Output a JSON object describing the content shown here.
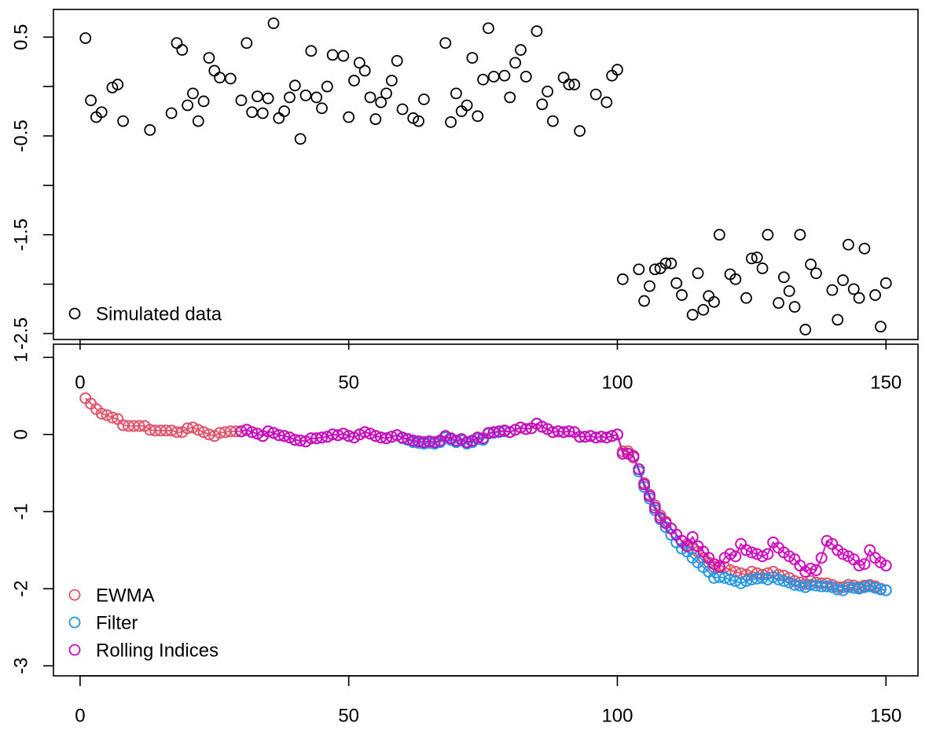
{
  "chart_data": [
    {
      "type": "scatter",
      "xlim": [
        -4.96,
        155.96
      ],
      "ylim": [
        -2.56,
        0.78
      ],
      "xticks": [
        0,
        50,
        100,
        150
      ],
      "yticks": [
        0.5,
        {
          "value": 0,
          "label": null
        },
        -0.5,
        {
          "value": -1,
          "label": null
        },
        -1.5,
        {
          "value": -2,
          "label": null
        },
        -2.5
      ],
      "legend": "bottomleft",
      "series": [
        {
          "name": "Simulated data",
          "color": "#000000",
          "x": [
            1,
            2,
            3,
            4,
            6,
            7,
            8,
            13,
            17,
            18,
            19,
            20,
            21,
            22,
            23,
            24,
            25,
            26,
            28,
            30,
            31,
            32,
            33,
            34,
            35,
            36,
            37,
            38,
            39,
            40,
            41,
            42,
            43,
            44,
            45,
            46,
            47,
            49,
            50,
            51,
            52,
            53,
            54,
            55,
            56,
            57,
            58,
            59,
            60,
            62,
            63,
            64,
            68,
            69,
            70,
            71,
            72,
            73,
            74,
            75,
            76,
            77,
            79,
            80,
            81,
            82,
            83,
            85,
            86,
            87,
            88,
            90,
            91,
            92,
            93,
            96,
            98,
            99,
            100,
            101,
            104,
            105,
            106,
            107,
            108,
            109,
            110,
            111,
            112,
            114,
            115,
            116,
            117,
            118,
            119,
            121,
            122,
            124,
            125,
            126,
            127,
            128,
            130,
            131,
            132,
            133,
            134,
            135,
            136,
            137,
            140,
            141,
            142,
            143,
            144,
            145,
            146,
            148,
            149,
            150
          ],
          "values": [
            0.49,
            -0.14,
            -0.31,
            -0.26,
            -0.01,
            0.02,
            -0.35,
            -0.44,
            -0.27,
            0.44,
            0.37,
            -0.19,
            -0.07,
            -0.35,
            -0.15,
            0.29,
            0.16,
            0.09,
            0.08,
            -0.14,
            0.44,
            -0.26,
            -0.1,
            -0.27,
            -0.12,
            0.64,
            -0.32,
            -0.25,
            -0.11,
            0.01,
            -0.53,
            -0.09,
            0.36,
            -0.11,
            -0.22,
            0,
            0.32,
            0.31,
            -0.31,
            0.06,
            0.24,
            0.16,
            -0.11,
            -0.33,
            -0.16,
            -0.07,
            0.06,
            0.26,
            -0.23,
            -0.32,
            -0.35,
            -0.13,
            0.44,
            -0.36,
            -0.07,
            -0.25,
            -0.19,
            0.29,
            -0.3,
            0.07,
            0.59,
            0.1,
            0.11,
            -0.11,
            0.24,
            0.37,
            0.1,
            0.56,
            -0.18,
            -0.05,
            -0.35,
            0.09,
            0.02,
            0.02,
            -0.45,
            -0.08,
            -0.16,
            0.11,
            0.17,
            -1.95,
            -1.85,
            -2.17,
            -2.02,
            -1.85,
            -1.84,
            -1.79,
            -1.79,
            -1.99,
            -2.11,
            -2.31,
            -1.89,
            -2.26,
            -2.12,
            -2.18,
            -1.5,
            -1.9,
            -1.95,
            -2.14,
            -1.74,
            -1.73,
            -1.84,
            -1.5,
            -2.19,
            -1.93,
            -2.07,
            -2.23,
            -1.5,
            -2.46,
            -1.8,
            -1.89,
            -2.06,
            -2.36,
            -1.96,
            -1.6,
            -2.05,
            -2.14,
            -1.64,
            -2.11,
            -2.43,
            -1.99
          ]
        }
      ]
    },
    {
      "type": "line",
      "xlim": [
        -4.96,
        155.96
      ],
      "ylim": [
        -3.13,
        1.17
      ],
      "xticks": [
        0,
        50,
        100,
        150
      ],
      "yticks": [
        1,
        0,
        -1,
        -2,
        -3
      ],
      "legend": "bottomleft",
      "x": [
        1,
        2,
        3,
        4,
        5,
        6,
        7,
        8,
        9,
        10,
        11,
        12,
        13,
        14,
        15,
        16,
        17,
        18,
        19,
        20,
        21,
        22,
        23,
        24,
        25,
        26,
        27,
        28,
        29,
        30,
        31,
        32,
        33,
        34,
        35,
        36,
        37,
        38,
        39,
        40,
        41,
        42,
        43,
        44,
        45,
        46,
        47,
        48,
        49,
        50,
        51,
        52,
        53,
        54,
        55,
        56,
        57,
        58,
        59,
        60,
        61,
        62,
        63,
        64,
        65,
        66,
        67,
        68,
        69,
        70,
        71,
        72,
        73,
        74,
        75,
        76,
        77,
        78,
        79,
        80,
        81,
        82,
        83,
        84,
        85,
        86,
        87,
        88,
        89,
        90,
        91,
        92,
        93,
        94,
        95,
        96,
        97,
        98,
        99,
        100,
        101,
        102,
        103,
        104,
        105,
        106,
        107,
        108,
        109,
        110,
        111,
        112,
        113,
        114,
        115,
        116,
        117,
        118,
        119,
        120,
        121,
        122,
        123,
        124,
        125,
        126,
        127,
        128,
        129,
        130,
        131,
        132,
        133,
        134,
        135,
        136,
        137,
        138,
        139,
        140,
        141,
        142,
        143,
        144,
        145,
        146,
        147,
        148,
        149,
        150
      ],
      "series": [
        {
          "name": "EWMA",
          "color": "#df536b",
          "values": [
            0.47,
            0.4,
            0.33,
            0.27,
            0.25,
            0.22,
            0.2,
            0.12,
            0.11,
            0.11,
            0.11,
            0.11,
            0.06,
            0.05,
            0.05,
            0.05,
            0.05,
            0.03,
            0.03,
            0.08,
            0.09,
            0.06,
            0.03,
            0,
            -0.02,
            0.02,
            0.03,
            0.04,
            0.04,
            0.04,
            0.06,
            0.03,
            0.01,
            -0.02,
            0.04,
            0.02,
            -0.01,
            -0.02,
            -0.04,
            -0.07,
            -0.08,
            -0.09,
            -0.05,
            -0.05,
            -0.04,
            -0.03,
            0,
            -0.01,
            0.01,
            -0.02,
            -0.04,
            0,
            0.03,
            0.01,
            -0.02,
            -0.04,
            -0.05,
            -0.03,
            -0.01,
            -0.04,
            -0.06,
            -0.08,
            -0.09,
            -0.1,
            -0.09,
            -0.1,
            -0.08,
            -0.02,
            -0.05,
            -0.08,
            -0.06,
            -0.1,
            -0.08,
            -0.04,
            -0.05,
            0.02,
            0.03,
            0.04,
            0.05,
            0.03,
            0.06,
            0.09,
            0.07,
            0.08,
            0.14,
            0.1,
            0.07,
            0.03,
            0.04,
            0.03,
            0.04,
            0.03,
            -0.03,
            -0.03,
            -0.02,
            -0.04,
            -0.03,
            -0.04,
            -0.02,
            0,
            -0.22,
            -0.22,
            -0.3,
            -0.45,
            -0.63,
            -0.78,
            -0.92,
            -1.05,
            -1.13,
            -1.22,
            -1.3,
            -1.38,
            -1.42,
            -1.48,
            -1.52,
            -1.6,
            -1.66,
            -1.72,
            -1.7,
            -1.72,
            -1.76,
            -1.78,
            -1.8,
            -1.82,
            -1.78,
            -1.8,
            -1.82,
            -1.8,
            -1.78,
            -1.82,
            -1.83,
            -1.86,
            -1.9,
            -1.92,
            -1.94,
            -1.9,
            -1.92,
            -1.93,
            -1.93,
            -1.95,
            -1.98,
            -1.98,
            -1.95,
            -1.96,
            -1.98,
            -1.96,
            -1.95,
            -1.97,
            -2,
            -2.02
          ]
        },
        {
          "name": "Filter",
          "color": "#2297e6",
          "values": [
            null,
            null,
            null,
            null,
            null,
            null,
            null,
            null,
            null,
            null,
            null,
            null,
            null,
            null,
            null,
            null,
            null,
            null,
            null,
            null,
            null,
            null,
            null,
            null,
            null,
            null,
            null,
            null,
            null,
            0.04,
            0.06,
            0.03,
            0.01,
            -0.02,
            0.04,
            0.02,
            -0.01,
            -0.02,
            -0.04,
            -0.07,
            -0.08,
            -0.09,
            -0.05,
            -0.05,
            -0.04,
            -0.03,
            0,
            -0.01,
            0.01,
            -0.02,
            -0.04,
            0,
            0.03,
            0.01,
            -0.02,
            -0.04,
            -0.05,
            -0.03,
            -0.01,
            -0.05,
            -0.07,
            -0.1,
            -0.11,
            -0.12,
            -0.11,
            -0.12,
            -0.1,
            -0.04,
            -0.07,
            -0.1,
            -0.08,
            -0.12,
            -0.1,
            -0.06,
            -0.07,
            0.01,
            0.02,
            0.03,
            0.04,
            0.03,
            0.06,
            0.09,
            0.07,
            0.08,
            0.14,
            0.1,
            0.07,
            0.03,
            0.04,
            0.03,
            0.04,
            0.03,
            -0.03,
            -0.03,
            -0.02,
            -0.04,
            -0.03,
            -0.04,
            -0.02,
            0,
            -0.25,
            -0.25,
            -0.28,
            -0.48,
            -0.68,
            -0.83,
            -0.98,
            -1.1,
            -1.2,
            -1.3,
            -1.4,
            -1.48,
            -1.52,
            -1.6,
            -1.66,
            -1.72,
            -1.78,
            -1.86,
            -1.85,
            -1.86,
            -1.88,
            -1.9,
            -1.93,
            -1.9,
            -1.88,
            -1.87,
            -1.86,
            -1.88,
            -1.85,
            -1.88,
            -1.9,
            -1.92,
            -1.95,
            -1.96,
            -1.98,
            -1.95,
            -1.96,
            -1.97,
            -1.97,
            -1.98,
            -2.01,
            -2.02,
            -1.98,
            -1.99,
            -2,
            -1.98,
            -1.97,
            -1.99,
            -2.01,
            -2.02
          ]
        },
        {
          "name": "Rolling Indices",
          "color": "#cd0bbc",
          "values": [
            null,
            null,
            null,
            null,
            null,
            null,
            null,
            null,
            null,
            null,
            null,
            null,
            null,
            null,
            null,
            null,
            null,
            null,
            null,
            null,
            null,
            null,
            null,
            null,
            null,
            null,
            null,
            null,
            null,
            0.04,
            0.06,
            0.03,
            0.01,
            -0.02,
            0.04,
            0.02,
            -0.01,
            -0.02,
            -0.04,
            -0.07,
            -0.08,
            -0.09,
            -0.05,
            -0.05,
            -0.04,
            -0.03,
            0,
            -0.01,
            0.01,
            -0.02,
            -0.04,
            0,
            0.03,
            0.01,
            -0.02,
            -0.04,
            -0.05,
            -0.03,
            -0.01,
            -0.04,
            -0.06,
            -0.08,
            -0.09,
            -0.1,
            -0.09,
            -0.1,
            -0.08,
            -0.02,
            -0.05,
            -0.08,
            -0.06,
            -0.1,
            -0.08,
            -0.04,
            -0.05,
            0.02,
            0.03,
            0.04,
            0.05,
            0.03,
            0.06,
            0.09,
            0.07,
            0.08,
            0.14,
            0.1,
            0.07,
            0.03,
            0.04,
            0.03,
            0.04,
            0.03,
            -0.03,
            -0.03,
            -0.02,
            -0.04,
            -0.03,
            -0.04,
            -0.02,
            0,
            -0.25,
            -0.25,
            -0.28,
            -0.45,
            -0.65,
            -0.8,
            -0.95,
            -1.08,
            -1.15,
            -1.22,
            -1.3,
            -1.38,
            -1.45,
            -1.33,
            -1.45,
            -1.52,
            -1.6,
            -1.68,
            -1.72,
            -1.6,
            -1.55,
            -1.58,
            -1.42,
            -1.5,
            -1.53,
            -1.55,
            -1.58,
            -1.55,
            -1.4,
            -1.47,
            -1.53,
            -1.58,
            -1.62,
            -1.7,
            -1.78,
            -1.74,
            -1.76,
            -1.6,
            -1.38,
            -1.42,
            -1.5,
            -1.55,
            -1.58,
            -1.62,
            -1.7,
            -1.68,
            -1.5,
            -1.6,
            -1.66,
            -1.7
          ]
        }
      ]
    }
  ]
}
